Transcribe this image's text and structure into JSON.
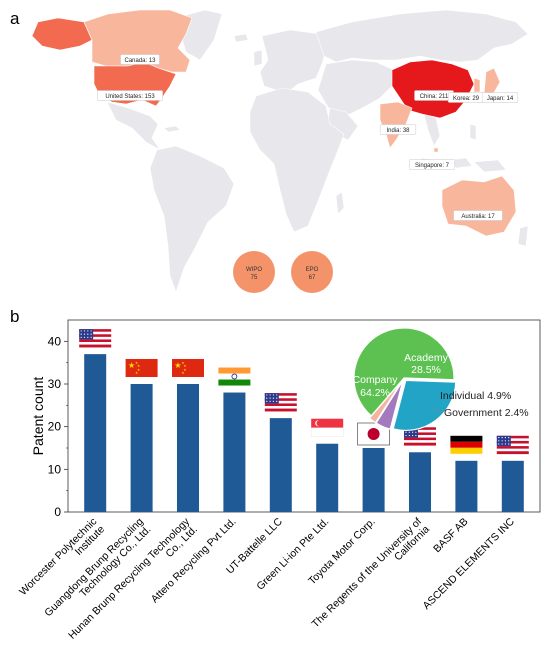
{
  "panels": {
    "a_label": "a",
    "b_label": "b"
  },
  "map": {
    "land_color": "#e7e7ec",
    "heat_colors": {
      "low": "#f8b79c",
      "mid": "#f26a4f",
      "high": "#e5191b",
      "org": "#f4936a"
    },
    "countries": [
      {
        "key": "canada",
        "label": "Canada: 13",
        "level": "low"
      },
      {
        "key": "us",
        "label": "United States: 153",
        "level": "mid"
      },
      {
        "key": "china",
        "label": "China: 211",
        "level": "high"
      },
      {
        "key": "korea",
        "label": "Korea: 29",
        "level": "low"
      },
      {
        "key": "japan",
        "label": "Japan: 14",
        "level": "low"
      },
      {
        "key": "india",
        "label": "India: 38",
        "level": "low"
      },
      {
        "key": "singapore",
        "label": "Singapore: 7",
        "level": "low"
      },
      {
        "key": "australia",
        "label": "Australia: 17",
        "level": "low"
      }
    ],
    "organizations": [
      {
        "name": "WIPO",
        "value": "75"
      },
      {
        "name": "EPO",
        "value": "67"
      }
    ]
  },
  "chart_data": [
    {
      "type": "bar",
      "ylabel": "Patent count",
      "ylim": [
        0,
        45
      ],
      "yticks": [
        0,
        10,
        20,
        30,
        40
      ],
      "bar_color": "#1f5a96",
      "categories": [
        "Worcester Polytechnic Institute",
        "Guangdong Brunp Recycling Technology Co., Ltd.",
        "Hunan Brunp Recycling Technology Co., Ltd.",
        "Attero Recycling Pvt Ltd.",
        "UT-Battelle LLC",
        "Green Li-ion Pte Ltd.",
        "Toyota Motor Corp.",
        "The Regents of the University of California",
        "BASF AB",
        "ASCEND ELEMENTS INC"
      ],
      "category_lines": [
        [
          "Worcester Polytechnic",
          "Institute"
        ],
        [
          "Guangdong Brunp Recycling",
          "Technology Co., Ltd."
        ],
        [
          "Hunan Brunp Recycling Technology",
          "Co., Ltd."
        ],
        [
          "Attero Recycling Pvt Ltd."
        ],
        [
          "UT-Battelle LLC"
        ],
        [
          "Green Li-ion Pte Ltd."
        ],
        [
          "Toyota Motor Corp."
        ],
        [
          "The Regents of the University of",
          "California"
        ],
        [
          "BASF AB"
        ],
        [
          "ASCEND ELEMENTS INC"
        ]
      ],
      "values": [
        37,
        30,
        30,
        28,
        22,
        16,
        15,
        14,
        12,
        12
      ],
      "flags": [
        "us-flag",
        "china-flag",
        "china-flag",
        "india-flag",
        "us-flag",
        "singapore-flag",
        "japan-flag",
        "us-flag",
        "germany-flag",
        "us-flag"
      ]
    },
    {
      "type": "pie",
      "slices": [
        {
          "name": "Company",
          "value": 64.2,
          "label": "64.2%",
          "color": "#5cc151"
        },
        {
          "name": "Academy",
          "value": 28.5,
          "label": "28.5%",
          "color": "#21a4c5"
        },
        {
          "name": "Individual",
          "value": 4.9,
          "label": "Individual 4.9%",
          "color": "#a37abd"
        },
        {
          "name": "Government",
          "value": 2.4,
          "label": "Government 2.4%",
          "color": "#f3b59d"
        }
      ]
    }
  ]
}
